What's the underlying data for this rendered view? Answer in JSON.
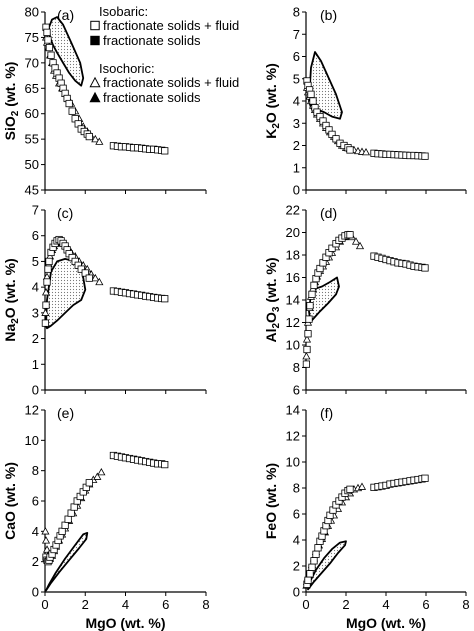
{
  "legend": {
    "isobaric_heading": "Isobaric:",
    "isochoric_heading": "Isochoric:",
    "entries": [
      {
        "symbol": "open-square",
        "label": "fractionate solids + fluid"
      },
      {
        "symbol": "filled-square",
        "label": "fractionate solids"
      },
      {
        "symbol": "open-triangle",
        "label": "fractionate solids + fluid"
      },
      {
        "symbol": "filled-triangle",
        "label": "fractionate solids"
      }
    ]
  },
  "chart_data": [
    {
      "type": "scatter",
      "panel": "(a)",
      "xlabel": "",
      "ylabel_main": "SiO",
      "ylabel_sub": "2",
      "ylabel_tail": " (wt. %)",
      "xlim": [
        0,
        8
      ],
      "ylim": [
        45,
        80
      ],
      "xticks": [],
      "yticks": [
        45,
        50,
        55,
        60,
        65,
        70,
        75,
        80
      ],
      "xtick_labels": [],
      "ytick_labels": [
        "45",
        "50",
        "55",
        "60",
        "65",
        "70",
        "75",
        "80"
      ],
      "squares": {
        "x": [
          0.05,
          0.1,
          0.15,
          0.22,
          0.3,
          0.4,
          0.5,
          0.6,
          0.7,
          0.8,
          0.9,
          1.0,
          1.1,
          1.2,
          1.35,
          1.5,
          1.65,
          1.8,
          1.95,
          2.1,
          2.2,
          3.4,
          3.6,
          3.8,
          4.0,
          4.2,
          4.4,
          4.6,
          4.8,
          5.0,
          5.2,
          5.4,
          5.6,
          5.8,
          5.95
        ],
        "y": [
          77,
          76,
          74.5,
          73,
          71.5,
          70,
          69,
          68,
          67,
          66,
          65,
          64,
          63,
          62,
          60.5,
          59,
          58,
          57,
          56.5,
          56,
          55.5,
          53.7,
          53.6,
          53.5,
          53.5,
          53.4,
          53.3,
          53.3,
          53.2,
          53.1,
          53,
          53,
          52.9,
          52.8,
          52.7
        ]
      },
      "triangles": {
        "x": [
          0.05,
          0.1,
          0.18,
          0.25,
          0.35,
          0.45,
          0.55,
          0.7,
          0.85,
          1.0,
          1.15,
          1.3,
          1.5,
          1.7,
          1.9,
          2.1,
          2.3,
          2.5,
          2.7
        ],
        "y": [
          75,
          74,
          73,
          71.5,
          70,
          68.5,
          67.5,
          66,
          65,
          64,
          63,
          62,
          60.5,
          59,
          57.5,
          56.5,
          55.5,
          55,
          54.5
        ]
      },
      "field": {
        "x": [
          0.2,
          0.35,
          0.6,
          0.9,
          1.3,
          1.75,
          1.9,
          1.8,
          1.5,
          1.2,
          0.9,
          0.6,
          0.4,
          0.25,
          0.2
        ],
        "y": [
          77,
          78.5,
          79,
          77.5,
          74,
          70,
          67,
          65.5,
          66.5,
          68,
          70,
          72,
          73.5,
          75,
          77
        ]
      }
    },
    {
      "type": "scatter",
      "panel": "(b)",
      "xlabel": "",
      "ylabel_main": "K",
      "ylabel_sub": "2",
      "ylabel_tail": "O (wt. %)",
      "xlim": [
        0,
        8
      ],
      "ylim": [
        0,
        8
      ],
      "xticks": [],
      "yticks": [
        0,
        1,
        2,
        3,
        4,
        5,
        6,
        7,
        8
      ],
      "xtick_labels": [],
      "ytick_labels": [
        "0",
        "1",
        "2",
        "3",
        "4",
        "5",
        "6",
        "7",
        "8"
      ],
      "squares": {
        "x": [
          0.05,
          0.1,
          0.18,
          0.25,
          0.35,
          0.45,
          0.55,
          0.7,
          0.85,
          1.0,
          1.15,
          1.3,
          1.5,
          1.7,
          1.9,
          2.1,
          2.2,
          3.4,
          3.6,
          3.8,
          4.0,
          4.2,
          4.4,
          4.6,
          4.8,
          5.0,
          5.2,
          5.4,
          5.6,
          5.8,
          5.95
        ],
        "y": [
          4.9,
          4.7,
          4.5,
          4.3,
          4.0,
          3.7,
          3.5,
          3.3,
          3.1,
          2.9,
          2.7,
          2.5,
          2.3,
          2.1,
          2.0,
          1.9,
          1.8,
          1.65,
          1.63,
          1.62,
          1.6,
          1.6,
          1.59,
          1.58,
          1.57,
          1.56,
          1.55,
          1.55,
          1.54,
          1.53,
          1.52
        ]
      },
      "triangles": {
        "x": [
          0.05,
          0.1,
          0.18,
          0.25,
          0.35,
          0.45,
          0.55,
          0.7,
          0.85,
          1.0,
          1.2,
          1.4,
          1.6,
          1.8,
          2.0,
          2.2,
          2.4,
          2.6,
          2.8,
          3.0
        ],
        "y": [
          4.6,
          4.4,
          4.2,
          4.0,
          3.8,
          3.6,
          3.4,
          3.2,
          3.0,
          2.8,
          2.6,
          2.4,
          2.2,
          2.0,
          1.9,
          1.85,
          1.8,
          1.75,
          1.72,
          1.7
        ]
      },
      "field": {
        "x": [
          0.15,
          0.25,
          0.45,
          0.75,
          1.1,
          1.5,
          1.8,
          1.7,
          1.3,
          0.9,
          0.6,
          0.4,
          0.25,
          0.15
        ],
        "y": [
          4.0,
          5.5,
          6.2,
          5.8,
          5.1,
          4.3,
          3.5,
          3.2,
          3.3,
          3.5,
          3.6,
          3.5,
          3.7,
          4.0
        ]
      }
    },
    {
      "type": "scatter",
      "panel": "(c)",
      "xlabel": "",
      "ylabel_main": "Na",
      "ylabel_sub": "2",
      "ylabel_tail": "O (wt. %)",
      "xlim": [
        0,
        8
      ],
      "ylim": [
        0,
        7
      ],
      "xticks": [],
      "yticks": [
        0,
        1,
        2,
        3,
        4,
        5,
        6,
        7
      ],
      "xtick_labels": [],
      "ytick_labels": [
        "0",
        "1",
        "2",
        "3",
        "4",
        "5",
        "6",
        "7"
      ],
      "squares": {
        "x": [
          0.02,
          0.05,
          0.1,
          0.15,
          0.2,
          0.3,
          0.4,
          0.5,
          0.6,
          0.7,
          0.8,
          0.9,
          1.0,
          1.1,
          1.2,
          1.35,
          1.5,
          1.65,
          1.8,
          2.0,
          2.2,
          3.4,
          3.6,
          3.8,
          4.0,
          4.2,
          4.4,
          4.6,
          4.8,
          5.0,
          5.2,
          5.4,
          5.6,
          5.8,
          5.95
        ],
        "y": [
          2.6,
          3.3,
          4.2,
          4.7,
          5.0,
          5.35,
          5.55,
          5.7,
          5.8,
          5.85,
          5.8,
          5.7,
          5.6,
          5.45,
          5.3,
          5.15,
          5.0,
          4.85,
          4.7,
          4.55,
          4.35,
          3.85,
          3.83,
          3.8,
          3.78,
          3.75,
          3.73,
          3.7,
          3.68,
          3.65,
          3.63,
          3.6,
          3.58,
          3.56,
          3.55
        ]
      },
      "triangles": {
        "x": [
          0.02,
          0.05,
          0.1,
          0.18,
          0.25,
          0.35,
          0.45,
          0.55,
          0.7,
          0.85,
          1.0,
          1.15,
          1.3,
          1.5,
          1.7,
          1.9,
          2.1,
          2.3,
          2.5,
          2.7
        ],
        "y": [
          3.0,
          3.8,
          4.4,
          4.9,
          5.2,
          5.45,
          5.6,
          5.7,
          5.75,
          5.7,
          5.6,
          5.5,
          5.35,
          5.2,
          5.0,
          4.85,
          4.7,
          4.5,
          4.35,
          4.2
        ]
      },
      "field": {
        "x": [
          0.05,
          0.1,
          0.3,
          0.6,
          1.0,
          1.5,
          1.85,
          2.0,
          1.8,
          1.4,
          1.0,
          0.6,
          0.3,
          0.1,
          0.05
        ],
        "y": [
          2.5,
          3.5,
          4.6,
          5.0,
          5.1,
          5.0,
          4.6,
          3.9,
          3.5,
          3.3,
          3.0,
          2.7,
          2.5,
          2.4,
          2.5
        ]
      }
    },
    {
      "type": "scatter",
      "panel": "(d)",
      "xlabel": "",
      "ylabel_main": "Al",
      "ylabel_sub": "2",
      "ylabel_tail": "O",
      "ylabel_sub2": "3",
      "ylabel_tail2": " (wt. %)",
      "xlim": [
        0,
        8
      ],
      "ylim": [
        6,
        22
      ],
      "xticks": [],
      "yticks": [
        6,
        8,
        10,
        12,
        14,
        16,
        18,
        20,
        22
      ],
      "xtick_labels": [],
      "ytick_labels": [
        "6",
        "8",
        "10",
        "12",
        "14",
        "16",
        "18",
        "20",
        "22"
      ],
      "squares": {
        "x": [
          0.02,
          0.05,
          0.1,
          0.15,
          0.2,
          0.3,
          0.4,
          0.5,
          0.6,
          0.7,
          0.85,
          1.0,
          1.15,
          1.3,
          1.5,
          1.65,
          1.8,
          1.95,
          2.1,
          2.2,
          3.4,
          3.6,
          3.8,
          4.0,
          4.2,
          4.4,
          4.6,
          4.8,
          5.0,
          5.2,
          5.4,
          5.6,
          5.8,
          5.95
        ],
        "y": [
          8.3,
          9.6,
          11.0,
          12.3,
          13.5,
          14.5,
          15.3,
          15.9,
          16.4,
          16.8,
          17.3,
          17.8,
          18.2,
          18.6,
          19.0,
          19.3,
          19.5,
          19.7,
          19.8,
          19.8,
          17.9,
          17.8,
          17.7,
          17.6,
          17.5,
          17.4,
          17.3,
          17.25,
          17.2,
          17.1,
          17.0,
          16.95,
          16.9,
          16.85
        ]
      },
      "triangles": {
        "x": [
          0.02,
          0.05,
          0.1,
          0.18,
          0.25,
          0.35,
          0.45,
          0.55,
          0.7,
          0.85,
          1.0,
          1.15,
          1.3,
          1.5,
          1.7,
          1.9,
          2.1,
          2.3,
          2.5,
          2.7
        ],
        "y": [
          9.0,
          10.5,
          12.0,
          13.3,
          14.3,
          15.0,
          15.6,
          16.1,
          16.6,
          17.0,
          17.4,
          17.8,
          18.2,
          18.7,
          19.2,
          19.6,
          19.8,
          19.6,
          19.2,
          18.8
        ]
      },
      "field": {
        "x": [
          0.15,
          0.25,
          0.45,
          0.8,
          1.2,
          1.55,
          1.65,
          1.5,
          1.1,
          0.7,
          0.45,
          0.3,
          0.2,
          0.15
        ],
        "y": [
          13.0,
          14.6,
          15.0,
          15.2,
          15.6,
          16.0,
          15.2,
          14.5,
          13.7,
          13.0,
          12.5,
          12.2,
          12.3,
          13.0
        ]
      }
    },
    {
      "type": "scatter",
      "panel": "(e)",
      "xlabel": "MgO (wt. %)",
      "ylabel_main": "CaO (wt. %)",
      "ylabel_sub": "",
      "ylabel_tail": "",
      "xlim": [
        0,
        8
      ],
      "ylim": [
        0,
        12
      ],
      "xticks": [
        0,
        2,
        4,
        6,
        8
      ],
      "yticks": [
        0,
        2,
        4,
        6,
        8,
        10,
        12
      ],
      "xtick_labels": [
        "0",
        "2",
        "4",
        "6",
        "8"
      ],
      "ytick_labels": [
        "0",
        "2",
        "4",
        "6",
        "8",
        "10",
        "12"
      ],
      "squares": {
        "x": [
          0.05,
          0.1,
          0.15,
          0.2,
          0.25,
          0.35,
          0.45,
          0.55,
          0.65,
          0.75,
          0.85,
          1.0,
          1.15,
          1.3,
          1.45,
          1.6,
          1.75,
          1.9,
          2.05,
          2.2,
          3.4,
          3.6,
          3.8,
          4.0,
          4.2,
          4.4,
          4.6,
          4.8,
          5.0,
          5.2,
          5.4,
          5.6,
          5.8,
          5.95
        ],
        "y": [
          2.3,
          2.1,
          2.0,
          2.1,
          2.3,
          2.5,
          2.8,
          3.1,
          3.4,
          3.7,
          4.0,
          4.4,
          4.8,
          5.2,
          5.6,
          6.0,
          6.3,
          6.6,
          6.9,
          7.2,
          9.0,
          8.95,
          8.9,
          8.85,
          8.8,
          8.75,
          8.7,
          8.65,
          8.6,
          8.55,
          8.5,
          8.45,
          8.45,
          8.4
        ]
      },
      "triangles": {
        "x": [
          0.02,
          0.05,
          0.1,
          0.15,
          0.25,
          0.35,
          0.45,
          0.55,
          0.7,
          0.85,
          1.0,
          1.2,
          1.4,
          1.6,
          1.8,
          2.0,
          2.2,
          2.4,
          2.6,
          2.8
        ],
        "y": [
          4.0,
          3.4,
          2.8,
          2.4,
          2.2,
          2.4,
          2.7,
          3.0,
          3.4,
          3.8,
          4.2,
          4.7,
          5.2,
          5.7,
          6.2,
          6.7,
          7.1,
          7.4,
          7.6,
          7.9
        ]
      },
      "field": {
        "x": [
          0.05,
          0.3,
          0.7,
          1.2,
          1.7,
          2.05,
          2.1,
          1.9,
          1.5,
          1.0,
          0.5,
          0.2,
          0.05
        ],
        "y": [
          0.1,
          0.6,
          1.3,
          2.1,
          2.9,
          3.5,
          3.9,
          3.8,
          3.1,
          2.2,
          1.2,
          0.5,
          0.1
        ]
      }
    },
    {
      "type": "scatter",
      "panel": "(f)",
      "xlabel": "MgO (wt. %)",
      "ylabel_main": "FeO (wt. %)",
      "ylabel_sub": "",
      "ylabel_tail": "",
      "xlim": [
        0,
        8
      ],
      "ylim": [
        0,
        14
      ],
      "xticks": [
        0,
        2,
        4,
        6,
        8
      ],
      "yticks": [
        0,
        2,
        4,
        6,
        8,
        10,
        12,
        14
      ],
      "xtick_labels": [
        "0",
        "2",
        "4",
        "6",
        "8"
      ],
      "ytick_labels": [
        "0",
        "2",
        "4",
        "6",
        "8",
        "10",
        "12",
        "14"
      ],
      "squares": {
        "x": [
          0.05,
          0.1,
          0.2,
          0.3,
          0.4,
          0.5,
          0.6,
          0.7,
          0.8,
          0.9,
          1.0,
          1.1,
          1.2,
          1.35,
          1.5,
          1.65,
          1.8,
          1.95,
          2.1,
          2.2,
          3.4,
          3.6,
          3.8,
          4.0,
          4.2,
          4.4,
          4.6,
          4.8,
          5.0,
          5.2,
          5.4,
          5.6,
          5.8,
          5.95
        ],
        "y": [
          0.6,
          0.9,
          1.4,
          1.9,
          2.4,
          2.9,
          3.4,
          3.9,
          4.3,
          4.7,
          5.1,
          5.5,
          5.9,
          6.3,
          6.7,
          7.0,
          7.3,
          7.6,
          7.8,
          7.9,
          8.05,
          8.1,
          8.15,
          8.2,
          8.3,
          8.35,
          8.4,
          8.45,
          8.5,
          8.55,
          8.6,
          8.65,
          8.7,
          8.75
        ]
      },
      "triangles": {
        "x": [
          0.02,
          0.05,
          0.1,
          0.2,
          0.3,
          0.4,
          0.5,
          0.65,
          0.8,
          0.95,
          1.1,
          1.25,
          1.4,
          1.6,
          1.8,
          2.0,
          2.2,
          2.4,
          2.6,
          2.8
        ],
        "y": [
          0.5,
          0.8,
          1.2,
          1.6,
          2.1,
          2.6,
          3.1,
          3.6,
          4.1,
          4.6,
          5.1,
          5.5,
          5.9,
          6.4,
          6.9,
          7.3,
          7.6,
          7.9,
          8.0,
          8.1
        ]
      },
      "field": {
        "x": [
          0.1,
          0.4,
          0.8,
          1.2,
          1.6,
          1.95,
          2.0,
          1.7,
          1.3,
          0.9,
          0.5,
          0.2,
          0.1
        ],
        "y": [
          0.2,
          0.8,
          1.5,
          2.2,
          3.0,
          3.6,
          3.9,
          3.8,
          3.3,
          2.6,
          1.7,
          0.8,
          0.2
        ]
      }
    }
  ]
}
